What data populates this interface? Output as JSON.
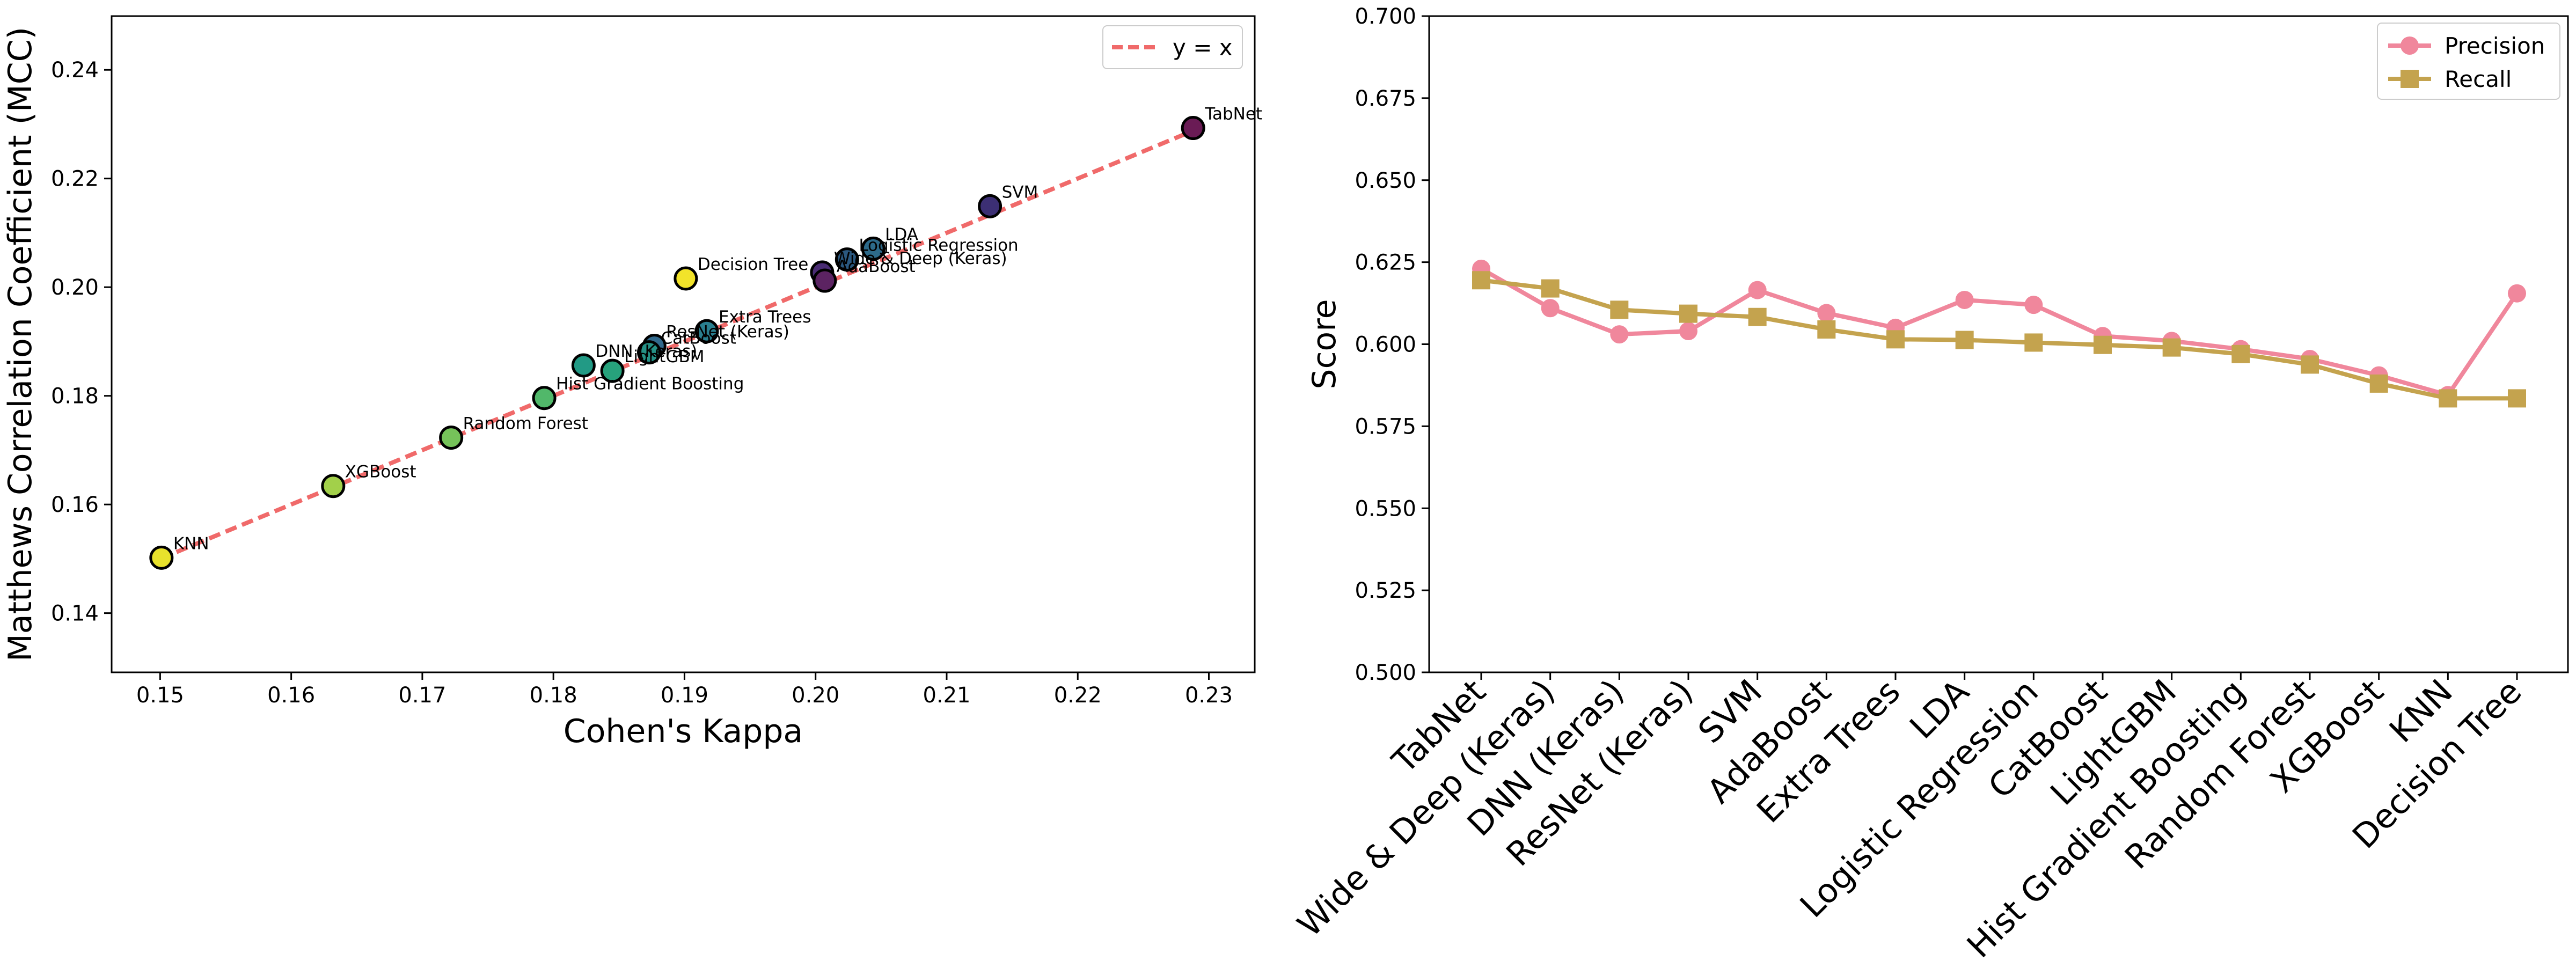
{
  "chart_data": [
    {
      "type": "scatter",
      "title": "",
      "xlabel": "Cohen's Kappa",
      "ylabel": "Matthews Correlation Coefficient (MCC)",
      "xlim": [
        0.1463,
        0.2335
      ],
      "ylim": [
        0.1291,
        0.2499
      ],
      "xticks": [
        0.15,
        0.16,
        0.17,
        0.18,
        0.19,
        0.2,
        0.21,
        0.22,
        0.23
      ],
      "xtick_labels": [
        "0.15",
        "0.16",
        "0.17",
        "0.18",
        "0.19",
        "0.20",
        "0.21",
        "0.22",
        "0.23"
      ],
      "yticks": [
        0.14,
        0.16,
        0.18,
        0.2,
        0.22,
        0.24
      ],
      "ytick_labels": [
        "0.14",
        "0.16",
        "0.18",
        "0.20",
        "0.22",
        "0.24"
      ],
      "grid": false,
      "legend": {
        "position": "upper-right",
        "entries": [
          {
            "label": "y = x",
            "color": "#f06a6a",
            "style": "dashed"
          }
        ]
      },
      "reference_line": {
        "label": "y = x",
        "from": [
          0.15,
          0.15
        ],
        "to": [
          0.229,
          0.229
        ],
        "color": "#f06a6a"
      },
      "points": [
        {
          "label": "TabNet",
          "x": 0.2288,
          "y": 0.2293,
          "color": "#6a1b55"
        },
        {
          "label": "SVM",
          "x": 0.2133,
          "y": 0.2149,
          "color": "#3c2f74"
        },
        {
          "label": "LDA",
          "x": 0.2044,
          "y": 0.2071,
          "color": "#2d6a8a"
        },
        {
          "label": "Logistic Regression",
          "x": 0.2024,
          "y": 0.2051,
          "color": "#2b587f"
        },
        {
          "label": "Wide & Deep (Keras)",
          "x": 0.2005,
          "y": 0.2027,
          "color": "#4a2c73"
        },
        {
          "label": "AdaBoost",
          "x": 0.2007,
          "y": 0.2012,
          "color": "#5c2362"
        },
        {
          "label": "Decision Tree",
          "x": 0.1901,
          "y": 0.2016,
          "color": "#f2e32a"
        },
        {
          "label": "Extra Trees",
          "x": 0.1917,
          "y": 0.1919,
          "color": "#2a7f8f"
        },
        {
          "label": "ResNet (Keras)",
          "x": 0.1877,
          "y": 0.1892,
          "color": "#31698c"
        },
        {
          "label": "CatBoost",
          "x": 0.1873,
          "y": 0.188,
          "color": "#259186"
        },
        {
          "label": "LightGBM",
          "x": 0.1845,
          "y": 0.1846,
          "color": "#27a27c"
        },
        {
          "label": "DNN (Keras)",
          "x": 0.1823,
          "y": 0.1856,
          "color": "#229a85"
        },
        {
          "label": "Hist Gradient Boosting",
          "x": 0.1793,
          "y": 0.1796,
          "color": "#51b86a"
        },
        {
          "label": "Random Forest",
          "x": 0.1722,
          "y": 0.1723,
          "color": "#76c35a"
        },
        {
          "label": "XGBoost",
          "x": 0.1632,
          "y": 0.1634,
          "color": "#a2d04a"
        },
        {
          "label": "KNN",
          "x": 0.1501,
          "y": 0.1502,
          "color": "#e8e12c"
        }
      ]
    },
    {
      "type": "line",
      "title": "",
      "xlabel": "",
      "ylabel": "Score",
      "ylim": [
        0.5,
        0.7
      ],
      "yticks": [
        0.5,
        0.525,
        0.55,
        0.575,
        0.6,
        0.625,
        0.65,
        0.675,
        0.7
      ],
      "ytick_labels": [
        "0.500",
        "0.525",
        "0.550",
        "0.575",
        "0.600",
        "0.625",
        "0.650",
        "0.675",
        "0.700"
      ],
      "grid": false,
      "legend": {
        "position": "upper-right"
      },
      "categories": [
        "TabNet",
        "Wide & Deep (Keras)",
        "DNN (Keras)",
        "ResNet (Keras)",
        "SVM",
        "AdaBoost",
        "Extra Trees",
        "LDA",
        "Logistic Regression",
        "CatBoost",
        "LightGBM",
        "Hist Gradient Boosting",
        "Random Forest",
        "XGBoost",
        "KNN",
        "Decision Tree"
      ],
      "series": [
        {
          "name": "Precision",
          "color": "#f0879c",
          "marker": "circle",
          "values": [
            0.623,
            0.611,
            0.603,
            0.604,
            0.6165,
            0.6095,
            0.605,
            0.6135,
            0.612,
            0.6025,
            0.601,
            0.5985,
            0.5955,
            0.5905,
            0.5845,
            0.6155
          ]
        },
        {
          "name": "Recall",
          "color": "#c4a34e",
          "marker": "square",
          "values": [
            0.6195,
            0.617,
            0.6105,
            0.6093,
            0.6083,
            0.6045,
            0.6015,
            0.6013,
            0.6005,
            0.5998,
            0.599,
            0.597,
            0.5938,
            0.588,
            0.5835,
            0.5835
          ]
        }
      ]
    }
  ]
}
